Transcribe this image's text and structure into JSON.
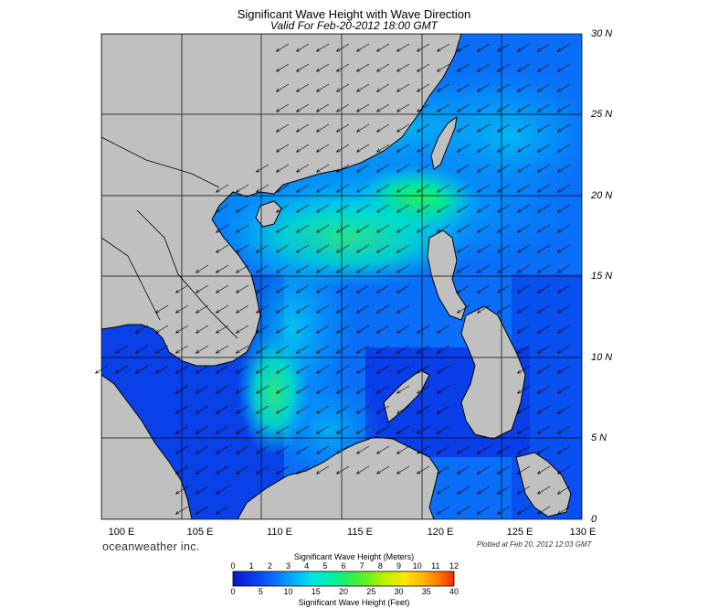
{
  "title": "Significant Wave Height with Wave Direction",
  "subtitle": "Valid For Feb-20-2012 18:00 GMT",
  "latitude_labels": [
    "30 N",
    "25 N",
    "20 N",
    "15 N",
    "10 N",
    "5 N",
    "0"
  ],
  "longitude_labels": [
    "100 E",
    "105 E",
    "110 E",
    "115 E",
    "120 E",
    "125 E",
    "130 E"
  ],
  "map_extent": {
    "lon": [
      100,
      130
    ],
    "lat": [
      0,
      30
    ],
    "grid_step_degrees": 5
  },
  "wave_direction": "from northeast toward southwest",
  "branding": "oceanweather inc.",
  "plotted_note": "Plotted at Feb 20, 2012 12:03 GMT",
  "colorbar": {
    "title_meters": "Significant Wave Height (Meters)",
    "title_feet": "Significant Wave Height (Feet)",
    "meters_ticks": [
      "0",
      "1",
      "2",
      "3",
      "4",
      "5",
      "6",
      "7",
      "8",
      "9",
      "10",
      "11",
      "12"
    ],
    "feet_ticks": [
      "0",
      "5",
      "10",
      "15",
      "20",
      "25",
      "30",
      "35",
      "40"
    ],
    "colors": [
      "#0a14c8",
      "#0a3ef0",
      "#0a78ff",
      "#00b4ff",
      "#00e6e0",
      "#00f0a0",
      "#28f050",
      "#78f014",
      "#c8f000",
      "#ffe600",
      "#ffb400",
      "#ff7800",
      "#ff2800"
    ]
  },
  "colors": {
    "land": "#c0c0c0",
    "coast": "#000000",
    "deep_blue": "#0a3ef0",
    "mid_blue": "#0a78ff",
    "cyan": "#00b4ff",
    "green": "#28f050"
  }
}
